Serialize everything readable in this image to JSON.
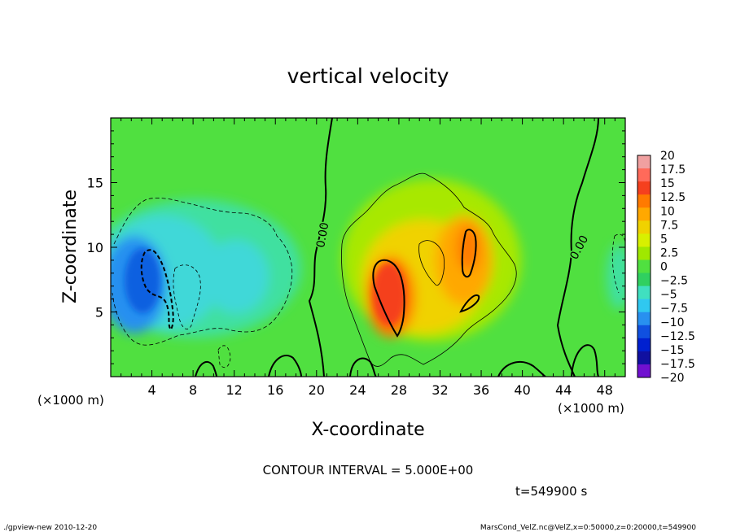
{
  "chart_data": {
    "type": "heatmap",
    "title": "vertical velocity",
    "xlabel": "X-coordinate",
    "ylabel": "Z-coordinate",
    "x_unit_left": "(×1000 m)",
    "x_unit_right": "(×1000 m)",
    "xlim": [
      0,
      50
    ],
    "ylim": [
      0,
      20
    ],
    "xticks": [
      "4",
      "8",
      "12",
      "16",
      "20",
      "24",
      "28",
      "32",
      "36",
      "40",
      "44",
      "48"
    ],
    "xtick_values": [
      4,
      8,
      12,
      16,
      20,
      24,
      28,
      32,
      36,
      40,
      44,
      48
    ],
    "yticks": [
      "5",
      "10",
      "15"
    ],
    "ytick_values": [
      5,
      10,
      15
    ],
    "contour_interval_text": "CONTOUR INTERVAL = 5.000E+00",
    "time_text": "t=549900 s",
    "contour_labels": [
      "0.00",
      "0.00"
    ],
    "colorbar": {
      "labels": [
        "20",
        "17.5",
        "15",
        "12.5",
        "10",
        "7.5",
        "5",
        "2.5",
        "0",
        "−2.5",
        "−5",
        "−7.5",
        "−10",
        "−12.5",
        "−15",
        "−17.5",
        "−20"
      ],
      "colors": [
        "#f0a0a0",
        "#ff6a5a",
        "#f5401e",
        "#ff7a00",
        "#ffa800",
        "#f0d200",
        "#d8f000",
        "#a0e800",
        "#50e040",
        "#30d060",
        "#40e0c0",
        "#30c8f0",
        "#2890f0",
        "#1050e0",
        "#0020d0",
        "#1010a0",
        "#7010d0"
      ]
    }
  },
  "footer": {
    "left": "./gpview-new  2010-12-20",
    "right": "MarsCond_VelZ.nc@VelZ,x=0:50000,z=0:20000,t=549900"
  }
}
